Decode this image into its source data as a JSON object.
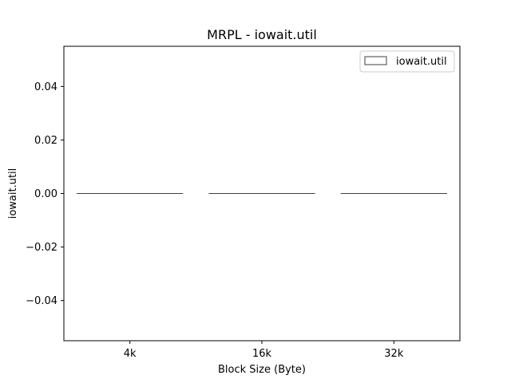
{
  "chart_data": {
    "type": "bar",
    "title": "MRPL - iowait.util",
    "xlabel": "Block Size (Byte)",
    "ylabel": "iowait.util",
    "categories": [
      "4k",
      "16k",
      "32k"
    ],
    "series": [
      {
        "name": "iowait.util",
        "values": [
          0.0,
          0.0,
          0.0
        ]
      }
    ],
    "ylim": [
      -0.055,
      0.055
    ],
    "yticks": [
      -0.04,
      -0.02,
      0.0,
      0.02,
      0.04
    ],
    "ytick_labels": [
      "−0.04",
      "−0.02",
      "0.00",
      "0.02",
      "0.04"
    ],
    "grid": false,
    "legend_position": "top-right",
    "colors": {
      "bar_fill": "#ffffff",
      "bar_edge": "#3f3f3f",
      "axes": "#000000"
    }
  }
}
